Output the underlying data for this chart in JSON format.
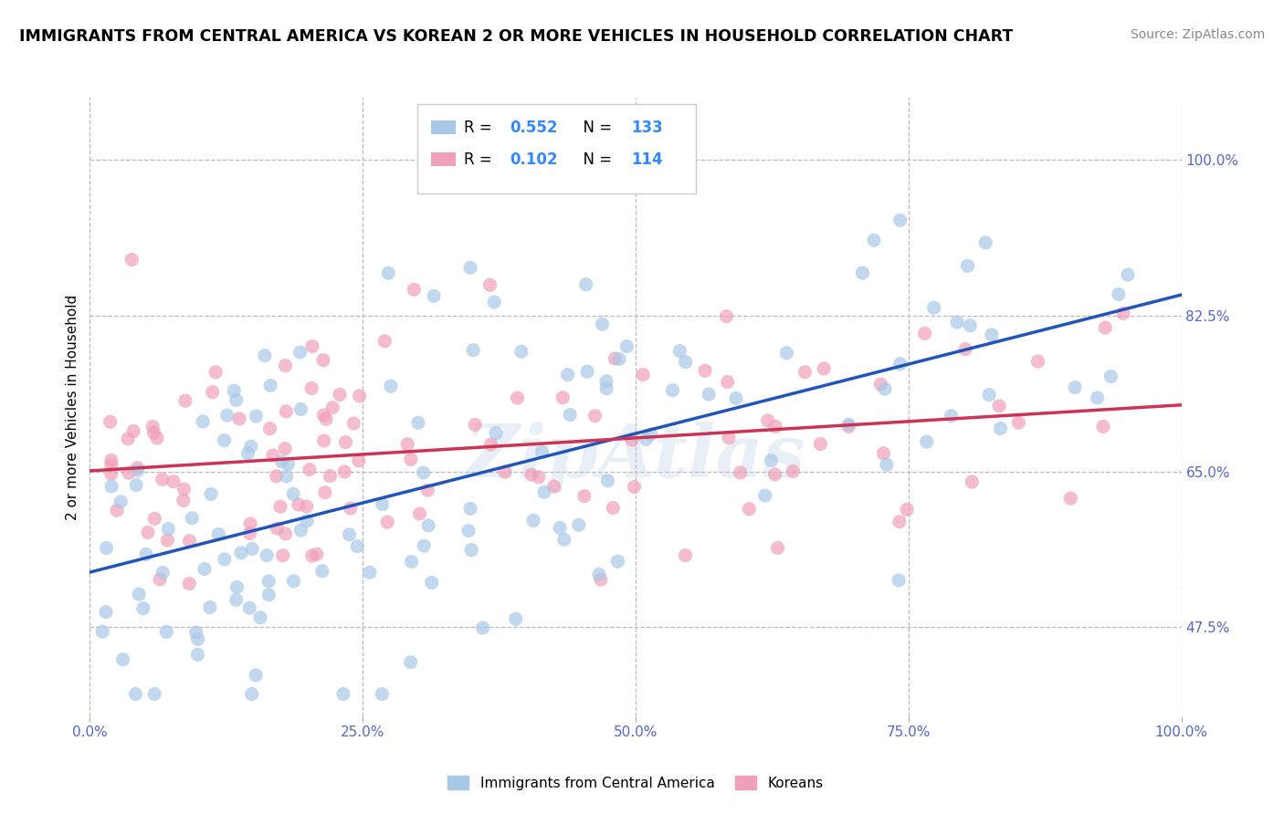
{
  "title": "IMMIGRANTS FROM CENTRAL AMERICA VS KOREAN 2 OR MORE VEHICLES IN HOUSEHOLD CORRELATION CHART",
  "source": "Source: ZipAtlas.com",
  "ylabel": "2 or more Vehicles in Household",
  "xlim": [
    0,
    100
  ],
  "ylim": [
    37.5,
    107
  ],
  "yticks": [
    47.5,
    65.0,
    82.5,
    100.0
  ],
  "xticks": [
    0,
    25,
    50,
    75,
    100
  ],
  "xtick_labels": [
    "0.0%",
    "25.0%",
    "50.0%",
    "75.0%",
    "100.0%"
  ],
  "ytick_labels": [
    "47.5%",
    "65.0%",
    "82.5%",
    "100.0%"
  ],
  "blue_R": 0.552,
  "blue_N": 133,
  "pink_R": 0.102,
  "pink_N": 114,
  "blue_color": "#a8c8e8",
  "pink_color": "#f0a0b8",
  "blue_line_color": "#2255bb",
  "pink_line_color": "#cc3355",
  "watermark": "ZipAtlas",
  "legend_labels": [
    "Immigrants from Central America",
    "Koreans"
  ],
  "title_fontsize": 12.5,
  "axis_label_fontsize": 11,
  "tick_fontsize": 11,
  "source_fontsize": 10
}
